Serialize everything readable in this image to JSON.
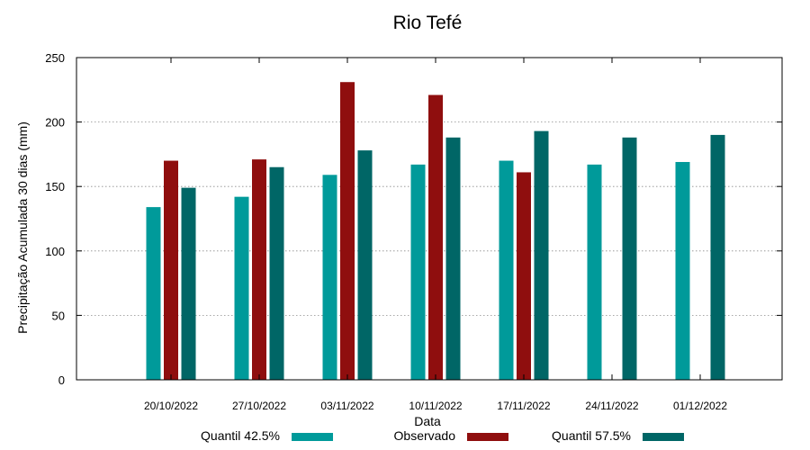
{
  "chart_data": {
    "type": "bar",
    "title": "Rio Tefé",
    "xlabel": "Data",
    "ylabel": "Precipitação Acumulada 30 dias (mm)",
    "ylim": [
      0,
      250
    ],
    "yticks": [
      0,
      50,
      100,
      150,
      200,
      250
    ],
    "grid": true,
    "legend_position": "bottom",
    "categories": [
      "20/10/2022",
      "27/10/2022",
      "03/11/2022",
      "10/11/2022",
      "17/11/2022",
      "24/11/2022",
      "01/12/2022"
    ],
    "series": [
      {
        "name": "Quantil 42.5%",
        "color": "#009a9a",
        "values": [
          134,
          142,
          159,
          167,
          170,
          167,
          169
        ]
      },
      {
        "name": "Observado",
        "color": "#8f0e0e",
        "values": [
          170,
          171,
          231,
          221,
          161,
          null,
          null
        ]
      },
      {
        "name": "Quantil 57.5%",
        "color": "#006666",
        "values": [
          149,
          165,
          178,
          188,
          193,
          188,
          190
        ]
      }
    ]
  }
}
